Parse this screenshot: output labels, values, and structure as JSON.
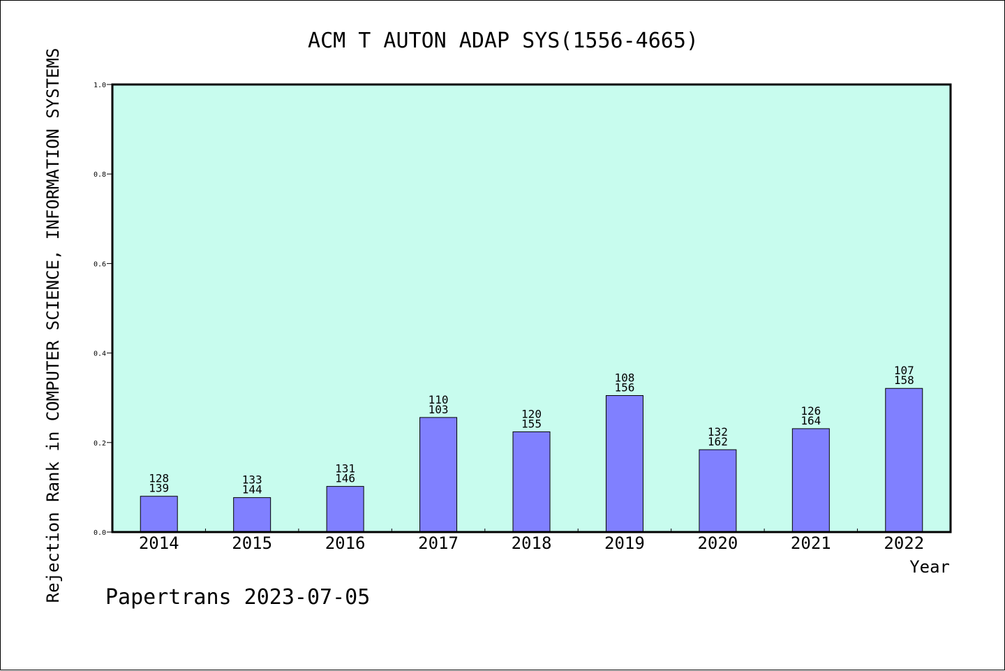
{
  "chart_data": {
    "type": "bar",
    "title": "ACM T AUTON ADAP SYS(1556-4665)",
    "xlabel": "Year",
    "ylabel": "Rejection Rank in COMPUTER SCIENCE, INFORMATION SYSTEMS",
    "categories": [
      "2014",
      "2015",
      "2016",
      "2017",
      "2018",
      "2019",
      "2020",
      "2021",
      "2022"
    ],
    "values": [
      0.08,
      0.077,
      0.102,
      0.256,
      0.224,
      0.305,
      0.184,
      0.231,
      0.321
    ],
    "label_top": [
      "128",
      "133",
      "131",
      "110",
      "120",
      "108",
      "132",
      "126",
      "107"
    ],
    "label_bottom": [
      "139",
      "144",
      "146",
      "103",
      "155",
      "156",
      "162",
      "164",
      "158"
    ],
    "ylim": [
      0,
      1.0
    ],
    "yticks": [
      "0.0",
      "0.2",
      "0.4",
      "0.6",
      "0.8",
      "1.0"
    ],
    "grid": false,
    "colors": {
      "plot_bg": "#c8fcee",
      "bar": "#8080ff"
    }
  },
  "footer": {
    "text": "Papertrans 2023-07-05"
  }
}
